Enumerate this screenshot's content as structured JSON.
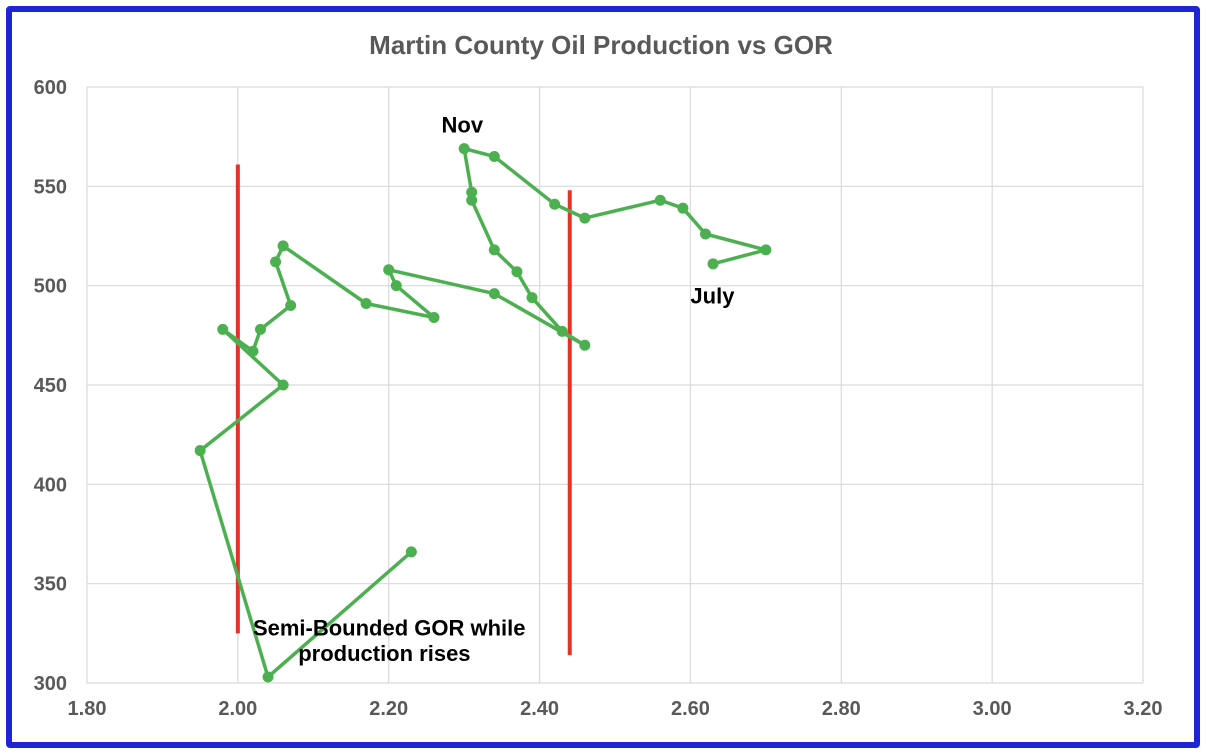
{
  "chart_data": {
    "type": "scatter",
    "title": "Martin County Oil Production vs GOR",
    "xlabel": "",
    "ylabel": "",
    "xlim": [
      1.8,
      3.2
    ],
    "ylim": [
      300,
      600
    ],
    "x_ticks": [
      "1.80",
      "2.00",
      "2.20",
      "2.40",
      "2.60",
      "2.80",
      "3.00",
      "3.20"
    ],
    "y_ticks": [
      "300",
      "350",
      "400",
      "450",
      "500",
      "550",
      "600"
    ],
    "grid": true,
    "line_color": "#4caf50",
    "marker_color": "#4caf50",
    "ref_line_color": "#e8302a",
    "series": [
      {
        "x": [
          2.23,
          2.04,
          1.95,
          2.06,
          1.98,
          2.02,
          2.03,
          2.07,
          2.05,
          2.06,
          2.17,
          2.26,
          2.21,
          2.2,
          2.34,
          2.46,
          2.43,
          2.39,
          2.37,
          2.34,
          2.31,
          2.31,
          2.3,
          2.34,
          2.42,
          2.46,
          2.56,
          2.59,
          2.62,
          2.7,
          2.63
        ],
        "y": [
          366,
          303,
          417,
          450,
          478,
          467,
          478,
          490,
          512,
          520,
          491,
          484,
          500,
          508,
          496,
          470,
          477,
          494,
          507,
          518,
          543,
          547,
          569,
          565,
          541,
          534,
          543,
          539,
          526,
          518,
          511
        ]
      }
    ],
    "reference_lines": [
      {
        "x": 2.0,
        "y_from": 325,
        "y_to": 561
      },
      {
        "x": 2.44,
        "y_from": 314,
        "y_to": 548
      }
    ],
    "annotations": [
      {
        "text": "Nov",
        "x": 2.27,
        "y": 577
      },
      {
        "text": "July",
        "x": 2.6,
        "y": 491
      },
      {
        "text": "Semi-Bounded GOR while",
        "x": 2.02,
        "y": 324
      },
      {
        "text": "production rises",
        "x": 2.08,
        "y": 311
      }
    ]
  }
}
